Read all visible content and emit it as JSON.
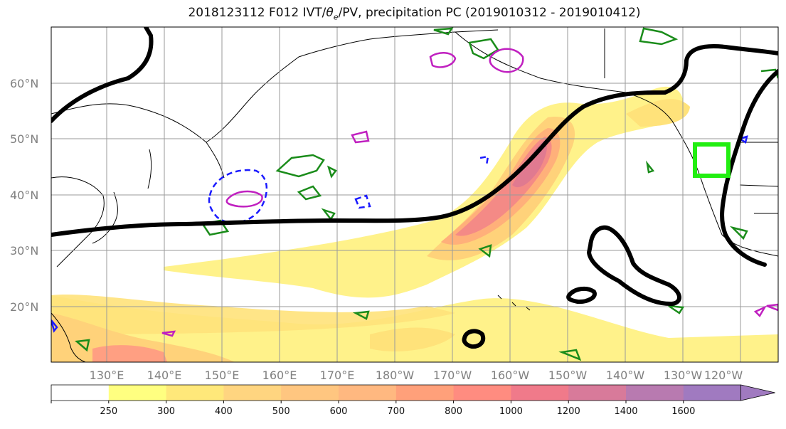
{
  "title": "2018123112 F012 IVT/θe/PV, precipitation PC (2019010312 - 2019010412)",
  "title_parts": {
    "prefix": "2018123112 F012 IVT/",
    "theta": "θ",
    "theta_sub": "e",
    "suffix": "/PV, precipitation PC (2019010312 - 2019010412)"
  },
  "lat_labels": [
    "60°N",
    "50°N",
    "40°N",
    "30°N",
    "20°N"
  ],
  "lon_labels": [
    "130°E",
    "140°E",
    "150°E",
    "160°E",
    "170°E",
    "180°W",
    "170°W",
    "160°W",
    "150°W",
    "140°W",
    "130°W",
    "120°W"
  ],
  "colorbar": {
    "levels": [
      "250",
      "300",
      "400",
      "500",
      "600",
      "700",
      "800",
      "1000",
      "1200",
      "1400",
      "1600"
    ],
    "colors": [
      "#ffffff",
      "#ffff80",
      "#ffe87a",
      "#ffd580",
      "#ffc680",
      "#ffb880",
      "#ffa07a",
      "#ff8c80",
      "#f07a8a",
      "#d87a9a",
      "#b87ab0",
      "#a07ac0"
    ],
    "extend": "max"
  },
  "legend_colors": {
    "ivt_fill": "#ffd86e",
    "theta_e_contour": "#000000",
    "pv_green": "#1a8c1a",
    "pv_blue": "#1a1aff",
    "pv_magenta": "#c020c0",
    "target_box": "#22ee11"
  }
}
